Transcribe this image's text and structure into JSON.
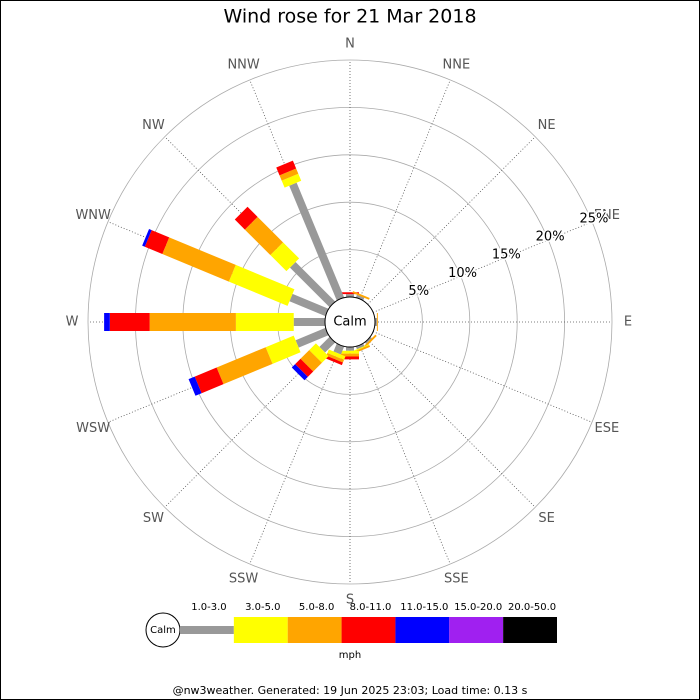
{
  "chart_data": {
    "type": "windrose",
    "title": "Wind rose for 21 Mar 2018",
    "directions": [
      "N",
      "NNE",
      "NE",
      "ENE",
      "E",
      "ESE",
      "SE",
      "SSE",
      "S",
      "SSW",
      "SW",
      "WSW",
      "W",
      "WNW",
      "NW",
      "NNW"
    ],
    "rlim": [
      0,
      25
    ],
    "rticks": [
      {
        "value": 5,
        "label": "5%"
      },
      {
        "value": 10,
        "label": "10%"
      },
      {
        "value": 15,
        "label": "15%"
      },
      {
        "value": 20,
        "label": "20%"
      },
      {
        "value": 25,
        "label": "25%"
      }
    ],
    "calm_label": "Calm",
    "unit": "mph",
    "footer": "@nw3weather.  Generated: 19 Jun 2025 23:03; Load time: 0.13 s",
    "series": [
      {
        "name": "1.0-3.0",
        "color": "#999999",
        "values": [
          0.3,
          0.3,
          0,
          0,
          0.2,
          0,
          0.2,
          0.3,
          0.4,
          0.9,
          1.5,
          3.4,
          3.3,
          4.1,
          5.9,
          13.1
        ]
      },
      {
        "name": "3.0-5.0",
        "color": "#ffff00",
        "values": [
          0,
          0,
          0,
          0,
          0,
          0,
          0,
          0.1,
          0.3,
          0.4,
          1.0,
          3.2,
          6.1,
          6.7,
          2.4,
          0.8
        ]
      },
      {
        "name": "5.0-8.0",
        "color": "#ffa500",
        "values": [
          0,
          0.2,
          0,
          0,
          0.1,
          0,
          0.2,
          0.2,
          0.3,
          0.3,
          1.3,
          5.6,
          9.1,
          7.6,
          3.8,
          0.6
        ]
      },
      {
        "name": "8.0-11.0",
        "color": "#ff0000",
        "values": [
          0.2,
          0,
          0,
          0,
          0,
          0,
          0,
          0,
          0.3,
          0.3,
          0.8,
          2.5,
          4.2,
          2.0,
          1.5,
          0.9
        ]
      },
      {
        "name": "11.0-15.0",
        "color": "#0000ff",
        "values": [
          0,
          0,
          0,
          0,
          0,
          0,
          0,
          0,
          0,
          0,
          0.5,
          0.7,
          0.6,
          0.3,
          0,
          0
        ]
      },
      {
        "name": "15.0-20.0",
        "color": "#a020f0",
        "values": [
          0,
          0,
          0,
          0,
          0,
          0,
          0,
          0,
          0,
          0,
          0,
          0,
          0,
          0,
          0,
          0
        ]
      },
      {
        "name": "20.0-50.0",
        "color": "#000000",
        "values": [
          0,
          0,
          0,
          0,
          0,
          0,
          0,
          0,
          0,
          0,
          0,
          0,
          0,
          0,
          0,
          0
        ]
      }
    ]
  }
}
